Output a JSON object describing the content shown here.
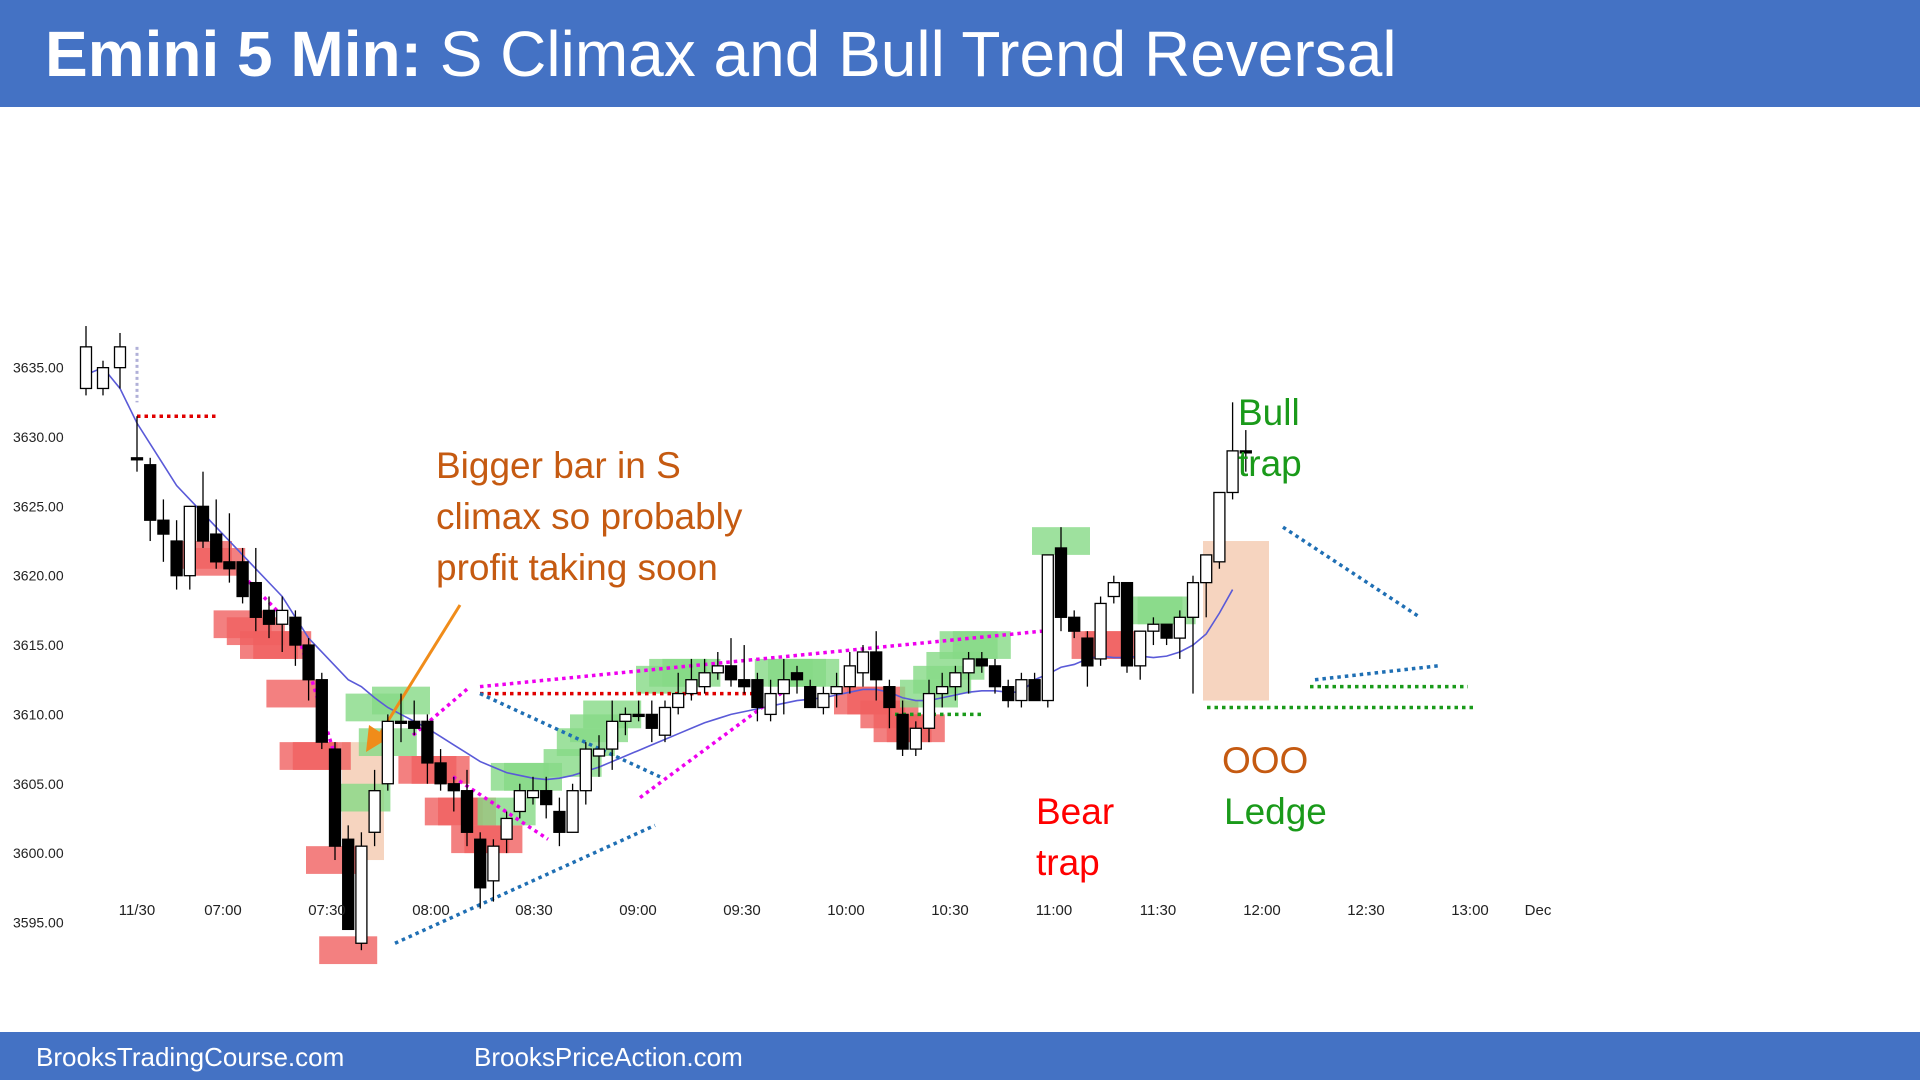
{
  "header": {
    "title_bold": "Emini 5 Min:",
    "title_rest": " S Climax and Bull Trend Reversal",
    "bg": "#4472c4"
  },
  "footer": {
    "left": "BrooksTradingCourse.com",
    "right": "BrooksPriceAction.com"
  },
  "annotations": {
    "bigger_bar": [
      "Bigger bar in S",
      "climax so probably",
      "profit taking soon"
    ],
    "bull_trap": [
      "Bull",
      "trap"
    ],
    "bear_trap": [
      "Bear",
      "trap"
    ],
    "ooo": "OOO",
    "ledge": "Ledge"
  },
  "colors": {
    "bull_highlight": "#86d986",
    "bear_highlight": "#f06060",
    "ema": "#5a5ad8",
    "orange_text": "#c55a11",
    "green_text": "#1a9a1a",
    "red_text": "#ff0000"
  },
  "chart_data": {
    "type": "candlestick",
    "title": "",
    "ylim": [
      3591,
      3638
    ],
    "y_ticks": [
      "3635.00",
      "3630.00",
      "3625.00",
      "3620.00",
      "3615.00",
      "3610.00",
      "3605.00",
      "3600.00",
      "3595.00"
    ],
    "x_ticks": [
      "11/30",
      "07:00",
      "07:30",
      "08:00",
      "08:30",
      "09:00",
      "09:30",
      "10:00",
      "10:30",
      "11:00",
      "11:30",
      "12:00",
      "12:30",
      "13:00",
      "Dec"
    ],
    "bars": [
      {
        "o": 3633.5,
        "h": 3638,
        "l": 3633,
        "c": 3636.5
      },
      {
        "o": 3633.5,
        "h": 3635.5,
        "l": 3633,
        "c": 3635
      },
      {
        "o": 3635,
        "h": 3637.5,
        "l": 3633.5,
        "c": 3636.5
      },
      {
        "o": 3628.5,
        "h": 3631.5,
        "l": 3627.5,
        "c": 3628.5
      },
      {
        "o": 3628,
        "h": 3628.5,
        "l": 3622.5,
        "c": 3624
      },
      {
        "o": 3624,
        "h": 3625.5,
        "l": 3621,
        "c": 3623
      },
      {
        "o": 3622.5,
        "h": 3624,
        "l": 3619,
        "c": 3620
      },
      {
        "o": 3620,
        "h": 3625,
        "l": 3619,
        "c": 3625
      },
      {
        "o": 3625,
        "h": 3627.5,
        "l": 3622,
        "c": 3622.5
      },
      {
        "o": 3623,
        "h": 3625.5,
        "l": 3620.5,
        "c": 3621
      },
      {
        "o": 3621,
        "h": 3624.5,
        "l": 3619.5,
        "c": 3620.5
      },
      {
        "o": 3621,
        "h": 3622,
        "l": 3618,
        "c": 3618.5
      },
      {
        "o": 3619.5,
        "h": 3622,
        "l": 3616,
        "c": 3617
      },
      {
        "o": 3617.5,
        "h": 3618.5,
        "l": 3615.5,
        "c": 3616.5
      },
      {
        "o": 3616.5,
        "h": 3618.5,
        "l": 3614.5,
        "c": 3617.5
      },
      {
        "o": 3617,
        "h": 3617.5,
        "l": 3613.5,
        "c": 3615
      },
      {
        "o": 3615,
        "h": 3615.5,
        "l": 3611,
        "c": 3612.5
      },
      {
        "o": 3612.5,
        "h": 3613,
        "l": 3607.5,
        "c": 3608
      },
      {
        "o": 3607.5,
        "h": 3608,
        "l": 3599.5,
        "c": 3600.5
      },
      {
        "o": 3601,
        "h": 3602,
        "l": 3594.5,
        "c": 3594.5
      },
      {
        "o": 3593.5,
        "h": 3601.5,
        "l": 3593,
        "c": 3600.5
      },
      {
        "o": 3601.5,
        "h": 3606,
        "l": 3600.5,
        "c": 3604.5
      },
      {
        "o": 3605,
        "h": 3610,
        "l": 3604.5,
        "c": 3609.5
      },
      {
        "o": 3609.5,
        "h": 3611.5,
        "l": 3608,
        "c": 3609.5
      },
      {
        "o": 3609.5,
        "h": 3611,
        "l": 3608.5,
        "c": 3609
      },
      {
        "o": 3609.5,
        "h": 3610,
        "l": 3605,
        "c": 3606.5
      },
      {
        "o": 3606.5,
        "h": 3607.5,
        "l": 3604.5,
        "c": 3605
      },
      {
        "o": 3605,
        "h": 3605.5,
        "l": 3603,
        "c": 3604.5
      },
      {
        "o": 3604.5,
        "h": 3606,
        "l": 3600.5,
        "c": 3601.5
      },
      {
        "o": 3601,
        "h": 3601.5,
        "l": 3596,
        "c": 3597.5
      },
      {
        "o": 3598,
        "h": 3601,
        "l": 3596.5,
        "c": 3600.5
      },
      {
        "o": 3601,
        "h": 3603,
        "l": 3600,
        "c": 3602.5
      },
      {
        "o": 3603,
        "h": 3605,
        "l": 3602.5,
        "c": 3604.5
      },
      {
        "o": 3604,
        "h": 3605.5,
        "l": 3603.5,
        "c": 3604.5
      },
      {
        "o": 3604.5,
        "h": 3605.5,
        "l": 3602.5,
        "c": 3603.5
      },
      {
        "o": 3603,
        "h": 3604,
        "l": 3600.5,
        "c": 3601.5
      },
      {
        "o": 3601.5,
        "h": 3605,
        "l": 3601.5,
        "c": 3604.5
      },
      {
        "o": 3604.5,
        "h": 3608,
        "l": 3603.5,
        "c": 3607.5
      },
      {
        "o": 3607,
        "h": 3608.5,
        "l": 3605.5,
        "c": 3607.5
      },
      {
        "o": 3607.5,
        "h": 3611,
        "l": 3606,
        "c": 3609.5
      },
      {
        "o": 3609.5,
        "h": 3610.5,
        "l": 3608.5,
        "c": 3610
      },
      {
        "o": 3610,
        "h": 3611,
        "l": 3609.5,
        "c": 3610
      },
      {
        "o": 3610,
        "h": 3611,
        "l": 3608,
        "c": 3609
      },
      {
        "o": 3608.5,
        "h": 3611,
        "l": 3608,
        "c": 3610.5
      },
      {
        "o": 3610.5,
        "h": 3613,
        "l": 3610,
        "c": 3611.5
      },
      {
        "o": 3611.5,
        "h": 3614,
        "l": 3611,
        "c": 3612.5
      },
      {
        "o": 3612,
        "h": 3614,
        "l": 3611.5,
        "c": 3613
      },
      {
        "o": 3613,
        "h": 3614.5,
        "l": 3612.5,
        "c": 3613.5
      },
      {
        "o": 3613.5,
        "h": 3615.5,
        "l": 3612,
        "c": 3612.5
      },
      {
        "o": 3612.5,
        "h": 3615,
        "l": 3611.5,
        "c": 3612
      },
      {
        "o": 3612.5,
        "h": 3613,
        "l": 3609.5,
        "c": 3610.5
      },
      {
        "o": 3610,
        "h": 3612.5,
        "l": 3609.5,
        "c": 3611.5
      },
      {
        "o": 3611.5,
        "h": 3614,
        "l": 3610,
        "c": 3612.5
      },
      {
        "o": 3613,
        "h": 3613.5,
        "l": 3611.5,
        "c": 3612.5
      },
      {
        "o": 3612,
        "h": 3612.5,
        "l": 3610.5,
        "c": 3610.5
      },
      {
        "o": 3610.5,
        "h": 3612,
        "l": 3610,
        "c": 3611.5
      },
      {
        "o": 3611.5,
        "h": 3613,
        "l": 3610.5,
        "c": 3612
      },
      {
        "o": 3612,
        "h": 3614.5,
        "l": 3611.5,
        "c": 3613.5
      },
      {
        "o": 3613,
        "h": 3615,
        "l": 3612,
        "c": 3614.5
      },
      {
        "o": 3614.5,
        "h": 3616,
        "l": 3611,
        "c": 3612.5
      },
      {
        "o": 3612,
        "h": 3612.5,
        "l": 3609,
        "c": 3610.5
      },
      {
        "o": 3610,
        "h": 3611,
        "l": 3607,
        "c": 3607.5
      },
      {
        "o": 3607.5,
        "h": 3609.5,
        "l": 3607,
        "c": 3609
      },
      {
        "o": 3609,
        "h": 3612.5,
        "l": 3608,
        "c": 3611.5
      },
      {
        "o": 3611.5,
        "h": 3613,
        "l": 3610.5,
        "c": 3612
      },
      {
        "o": 3612,
        "h": 3613.5,
        "l": 3611,
        "c": 3613
      },
      {
        "o": 3613,
        "h": 3614.5,
        "l": 3611.5,
        "c": 3614
      },
      {
        "o": 3614,
        "h": 3614.5,
        "l": 3613,
        "c": 3613.5
      },
      {
        "o": 3613.5,
        "h": 3614,
        "l": 3611.5,
        "c": 3612
      },
      {
        "o": 3612,
        "h": 3612.5,
        "l": 3610.5,
        "c": 3611
      },
      {
        "o": 3611,
        "h": 3613,
        "l": 3610.5,
        "c": 3612.5
      },
      {
        "o": 3612.5,
        "h": 3613,
        "l": 3611,
        "c": 3611
      },
      {
        "o": 3611,
        "h": 3621.5,
        "l": 3610.5,
        "c": 3621.5
      },
      {
        "o": 3622,
        "h": 3623.5,
        "l": 3616,
        "c": 3617
      },
      {
        "o": 3617,
        "h": 3617.5,
        "l": 3615.5,
        "c": 3616
      },
      {
        "o": 3615.5,
        "h": 3616,
        "l": 3612,
        "c": 3613.5
      },
      {
        "o": 3614,
        "h": 3618.5,
        "l": 3613.5,
        "c": 3618
      },
      {
        "o": 3618.5,
        "h": 3620,
        "l": 3618,
        "c": 3619.5
      },
      {
        "o": 3619.5,
        "h": 3619.5,
        "l": 3613,
        "c": 3613.5
      },
      {
        "o": 3613.5,
        "h": 3616,
        "l": 3612.5,
        "c": 3616
      },
      {
        "o": 3616,
        "h": 3617,
        "l": 3615,
        "c": 3616.5
      },
      {
        "o": 3616.5,
        "h": 3616.5,
        "l": 3615,
        "c": 3615.5
      },
      {
        "o": 3615.5,
        "h": 3617.5,
        "l": 3614,
        "c": 3617
      },
      {
        "o": 3617,
        "h": 3620,
        "l": 3611.5,
        "c": 3619.5
      },
      {
        "o": 3619.5,
        "h": 3621.5,
        "l": 3617,
        "c": 3621.5
      },
      {
        "o": 3621,
        "h": 3626,
        "l": 3620.5,
        "c": 3626
      },
      {
        "o": 3626,
        "h": 3632.5,
        "l": 3625.5,
        "c": 3629
      },
      {
        "o": 3629,
        "h": 3630.5,
        "l": 3627.5,
        "c": 3629
      }
    ],
    "ema": [
      3634.5,
      3635,
      3633.5,
      3631,
      3629.5,
      3628,
      3626.5,
      3625.5,
      3624.5,
      3623.5,
      3622.5,
      3621.5,
      3620.5,
      3619.5,
      3618.5,
      3617,
      3615.5,
      3614.5,
      3613.5,
      3612.5,
      3612,
      3611.2,
      3610.5,
      3610,
      3609.5,
      3609,
      3608.4,
      3607.8,
      3607.2,
      3606.6,
      3606.2,
      3605.8,
      3605.6,
      3605.4,
      3605.3,
      3605.4,
      3605.6,
      3605.9,
      3606.2,
      3606.6,
      3607,
      3607.4,
      3607.8,
      3608.2,
      3608.6,
      3609,
      3609.4,
      3609.7,
      3610,
      3610.2,
      3610.4,
      3610.6,
      3610.8,
      3611,
      3611.1,
      3611.2,
      3611.4,
      3611.6,
      3611.8,
      3611.8,
      3611.6,
      3611.2,
      3611,
      3611,
      3611.2,
      3611.4,
      3611.6,
      3611.7,
      3611.7,
      3611.6,
      3611.6,
      3612.5,
      3612.9,
      3613.4,
      3613.6,
      3614,
      3614.2,
      3614.1,
      3614.1,
      3614.2,
      3614.1,
      3614.2,
      3614.5,
      3615,
      3615.8,
      3617.3,
      3619
    ]
  }
}
